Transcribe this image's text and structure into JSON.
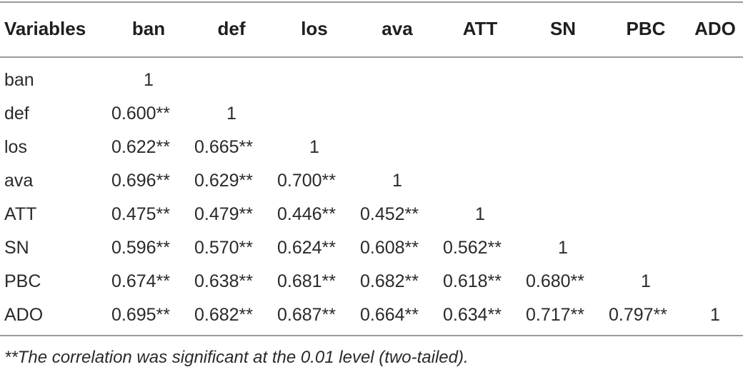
{
  "table": {
    "headers": [
      "Variables",
      "ban",
      "def",
      "los",
      "ava",
      "ATT",
      "SN",
      "PBC",
      "ADO"
    ],
    "rows": [
      {
        "label": "ban",
        "cells": [
          "1",
          "",
          "",
          "",
          "",
          "",
          "",
          ""
        ]
      },
      {
        "label": "def",
        "cells": [
          "0.600**",
          "1",
          "",
          "",
          "",
          "",
          "",
          ""
        ]
      },
      {
        "label": "los",
        "cells": [
          "0.622**",
          "0.665**",
          "1",
          "",
          "",
          "",
          "",
          ""
        ]
      },
      {
        "label": "ava",
        "cells": [
          "0.696**",
          "0.629**",
          "0.700**",
          "1",
          "",
          "",
          "",
          ""
        ]
      },
      {
        "label": "ATT",
        "cells": [
          "0.475**",
          "0.479**",
          "0.446**",
          "0.452**",
          "1",
          "",
          "",
          ""
        ]
      },
      {
        "label": "SN",
        "cells": [
          "0.596**",
          "0.570**",
          "0.624**",
          "0.608**",
          "0.562**",
          "1",
          "",
          ""
        ]
      },
      {
        "label": "PBC",
        "cells": [
          "0.674**",
          "0.638**",
          "0.681**",
          "0.682**",
          "0.618**",
          "0.680**",
          "1",
          ""
        ]
      },
      {
        "label": "ADO",
        "cells": [
          "0.695**",
          "0.682**",
          "0.687**",
          "0.664**",
          "0.634**",
          "0.717**",
          "0.797**",
          "1"
        ]
      }
    ]
  },
  "footnote": "**The correlation was significant at the 0.01 level (two-tailed)."
}
